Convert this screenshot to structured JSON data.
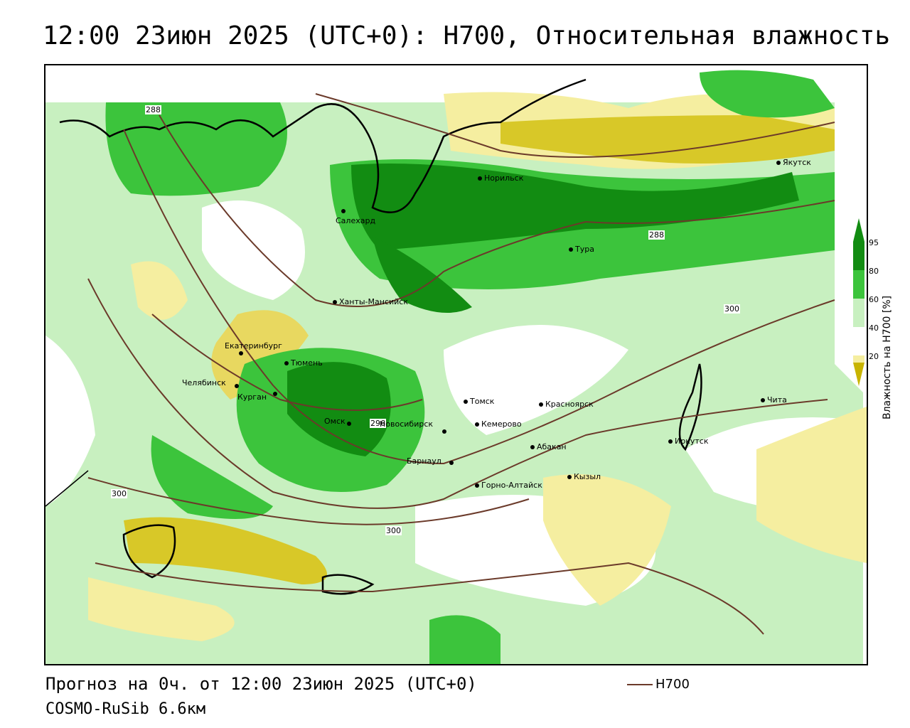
{
  "title": "12:00 23июн 2025 (UTC+0): H700, Относительная влажность",
  "footer": {
    "forecast": "Прогноз на 0ч. от 12:00 23июн 2025 (UTC+0)",
    "model": "COSMO-RuSib 6.6км"
  },
  "series_legend": {
    "label": "H700",
    "color": "#6b3a2a"
  },
  "colorbar": {
    "title": "Влажность на H700 [%]",
    "ticks": [
      "95",
      "80",
      "60",
      "40",
      "20"
    ],
    "colors": {
      "dry_dark": "#c8b400",
      "dry_light": "#f5eea0",
      "neutral": "#ffffff",
      "moist_light": "#c8f0c0",
      "moist_mid": "#3cc43c",
      "moist_dark": "#128c12"
    }
  },
  "contour_labels": [
    "288",
    "288",
    "300",
    "300",
    "300",
    "296"
  ],
  "cities": [
    {
      "name": "Якутск"
    },
    {
      "name": "Норильск"
    },
    {
      "name": "Салехард"
    },
    {
      "name": "Тура"
    },
    {
      "name": "Ханты-Мансийск"
    },
    {
      "name": "Екатеринбург"
    },
    {
      "name": "Тюмень"
    },
    {
      "name": "Челябинск"
    },
    {
      "name": "Курган"
    },
    {
      "name": "Омск"
    },
    {
      "name": "Новосибирск"
    },
    {
      "name": "Томск"
    },
    {
      "name": "Кемерово"
    },
    {
      "name": "Красноярск"
    },
    {
      "name": "Абакан"
    },
    {
      "name": "Барнаул"
    },
    {
      "name": "Горно-Алтайск"
    },
    {
      "name": "Кызыл"
    },
    {
      "name": "Иркутск"
    },
    {
      "name": "Чита"
    }
  ]
}
